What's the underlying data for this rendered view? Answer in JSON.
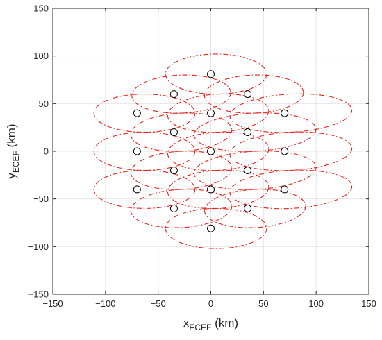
{
  "chart_data": {
    "type": "scatter",
    "title": "",
    "xlabel": {
      "main": "x",
      "sub": "ECEF",
      "unit": " (km)"
    },
    "ylabel": {
      "main": "y",
      "sub": "ECEF",
      "unit": " (km)"
    },
    "xlim": [
      -150,
      150
    ],
    "ylim": [
      -150,
      150
    ],
    "xticks": [
      -150,
      -100,
      -50,
      0,
      50,
      100,
      150
    ],
    "yticks": [
      -150,
      -100,
      -50,
      0,
      50,
      100,
      150
    ],
    "grid": true,
    "box": true,
    "colors": {
      "marker": "#000000",
      "ellipse": "#e8221b",
      "grid": "#e6e6e6",
      "axis": "#262626"
    },
    "series": [
      {
        "kind": "markers",
        "marker": "circle-open",
        "points": [
          [
            0,
            81
          ],
          [
            -35,
            60
          ],
          [
            35,
            60
          ],
          [
            -70,
            40
          ],
          [
            0,
            40
          ],
          [
            70,
            40
          ],
          [
            -35,
            20
          ],
          [
            35,
            20
          ],
          [
            -70,
            0
          ],
          [
            0,
            0
          ],
          [
            70,
            0
          ],
          [
            -35,
            -20
          ],
          [
            35,
            -20
          ],
          [
            -70,
            -40
          ],
          [
            0,
            -40
          ],
          [
            70,
            -40
          ],
          [
            -35,
            -60
          ],
          [
            35,
            -60
          ],
          [
            0,
            -81
          ]
        ]
      },
      {
        "kind": "ellipses",
        "line_style": "dash-dot",
        "items": [
          {
            "cx": 5,
            "cy": 81,
            "rx": 48,
            "ry": 21,
            "angle": 0
          },
          {
            "cx": -28,
            "cy": 60,
            "rx": 47,
            "ry": 20,
            "angle": -2
          },
          {
            "cx": 41,
            "cy": 60,
            "rx": 47,
            "ry": 20,
            "angle": -2
          },
          {
            "cx": -63,
            "cy": 40,
            "rx": 48,
            "ry": 20,
            "angle": 0
          },
          {
            "cx": 7,
            "cy": 40,
            "rx": 48,
            "ry": 20,
            "angle": -3
          },
          {
            "cx": 76,
            "cy": 40,
            "rx": 58,
            "ry": 20,
            "angle": -3
          },
          {
            "cx": -28,
            "cy": 20,
            "rx": 48,
            "ry": 20,
            "angle": -3
          },
          {
            "cx": 42,
            "cy": 20,
            "rx": 58,
            "ry": 20,
            "angle": -3
          },
          {
            "cx": -63,
            "cy": 0,
            "rx": 48,
            "ry": 20,
            "angle": 0
          },
          {
            "cx": 7,
            "cy": 0,
            "rx": 48,
            "ry": 20,
            "angle": -3
          },
          {
            "cx": 76,
            "cy": 0,
            "rx": 58,
            "ry": 20,
            "angle": -3
          },
          {
            "cx": -28,
            "cy": -20,
            "rx": 48,
            "ry": 20,
            "angle": -3
          },
          {
            "cx": 42,
            "cy": -20,
            "rx": 58,
            "ry": 20,
            "angle": -3
          },
          {
            "cx": -63,
            "cy": -40,
            "rx": 48,
            "ry": 20,
            "angle": 0
          },
          {
            "cx": 7,
            "cy": -40,
            "rx": 48,
            "ry": 20,
            "angle": -3
          },
          {
            "cx": 76,
            "cy": -40,
            "rx": 58,
            "ry": 20,
            "angle": -3
          },
          {
            "cx": -28,
            "cy": -60,
            "rx": 48,
            "ry": 20,
            "angle": -3
          },
          {
            "cx": 42,
            "cy": -60,
            "rx": 48,
            "ry": 20,
            "angle": -3
          },
          {
            "cx": 5,
            "cy": -81,
            "rx": 48,
            "ry": 21,
            "angle": 0
          }
        ]
      }
    ]
  }
}
